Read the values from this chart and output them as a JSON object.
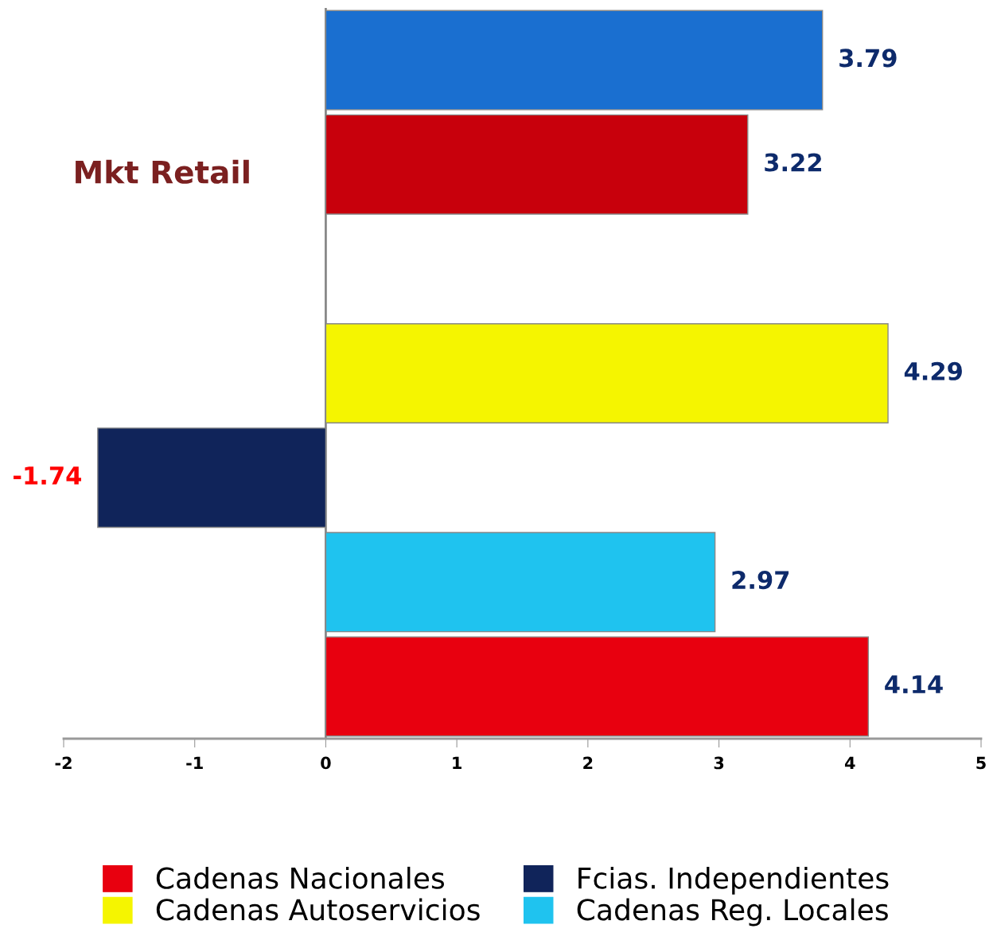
{
  "chart_data": {
    "type": "bar",
    "orientation": "horizontal",
    "title": "Mkt Retail",
    "categories": [
      null,
      null,
      null,
      null,
      null,
      null,
      null
    ],
    "series": [
      {
        "name": "Cadenas Nacionales",
        "color": "#e8000f",
        "values": [
          null,
          null,
          null,
          null,
          null,
          null,
          4.14
        ]
      },
      {
        "name": "Cadenas Autoservicios",
        "color": "#f5f500",
        "values": [
          null,
          null,
          null,
          4.29,
          null,
          null,
          null
        ]
      },
      {
        "name": "Fcias. Independientes",
        "color": "#10245a",
        "values": [
          null,
          null,
          null,
          null,
          -1.74,
          null,
          null
        ]
      },
      {
        "name": "Cadenas Reg. Locales",
        "color": "#1fc3ef",
        "values": [
          null,
          null,
          null,
          null,
          null,
          2.97,
          null
        ]
      },
      {
        "color": "#1a6fd0",
        "values": [
          3.79,
          null,
          null,
          null,
          null,
          null,
          null
        ]
      },
      {
        "color": "#c8000c",
        "values": [
          null,
          3.22,
          null,
          null,
          null,
          null,
          null
        ]
      }
    ],
    "xlim": [
      -2,
      5
    ],
    "xticks": [
      -2,
      -1,
      0,
      1,
      2,
      3,
      4,
      5
    ],
    "ref_lines": [
      {
        "axis": "x",
        "value": 0,
        "color": "#888888"
      }
    ],
    "data_labels": true,
    "grid": false,
    "legend": "bottom"
  }
}
